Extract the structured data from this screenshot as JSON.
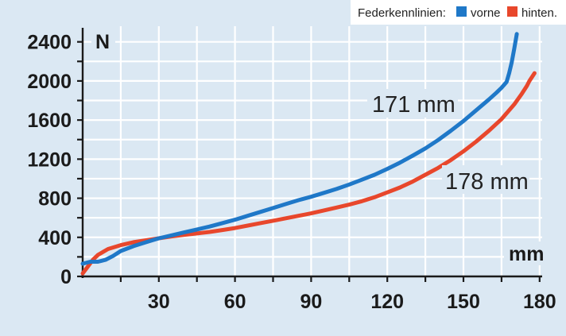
{
  "chart_data": {
    "type": "line",
    "title": "",
    "xlabel": "",
    "ylabel": "",
    "x_unit": "mm",
    "y_unit": "N",
    "xlim": [
      0,
      181
    ],
    "ylim": [
      0,
      2560
    ],
    "x_ticks": [
      30,
      60,
      90,
      120,
      150,
      180
    ],
    "y_ticks": [
      0,
      400,
      800,
      1200,
      1600,
      2000,
      2400
    ],
    "grid": true,
    "legend": {
      "title": "Federkennlinien:",
      "placement": "top-right",
      "entries": [
        {
          "label": "vorne",
          "color": "#1f78c8"
        },
        {
          "label": "hinten.",
          "color": "#e8472c"
        }
      ]
    },
    "annotations": [
      "171 mm",
      "178 mm"
    ],
    "series": [
      {
        "name": "vorne",
        "color": "#1f78c8",
        "x": [
          0,
          3,
          6,
          9,
          12,
          15,
          20,
          25,
          30,
          35,
          40,
          45,
          50,
          55,
          60,
          65,
          70,
          75,
          80,
          85,
          90,
          95,
          100,
          105,
          110,
          115,
          120,
          125,
          130,
          135,
          140,
          145,
          150,
          155,
          160,
          163,
          165,
          167,
          168,
          169,
          170,
          171
        ],
        "y": [
          130,
          150,
          150,
          170,
          210,
          260,
          310,
          350,
          390,
          420,
          450,
          480,
          510,
          545,
          580,
          620,
          660,
          700,
          740,
          780,
          815,
          855,
          895,
          940,
          990,
          1040,
          1100,
          1165,
          1235,
          1310,
          1395,
          1490,
          1590,
          1700,
          1810,
          1880,
          1930,
          1990,
          2080,
          2190,
          2330,
          2480
        ]
      },
      {
        "name": "hinten.",
        "color": "#e8472c",
        "x": [
          0,
          2,
          4,
          6,
          10,
          15,
          20,
          25,
          30,
          35,
          40,
          45,
          50,
          55,
          60,
          65,
          70,
          75,
          80,
          85,
          90,
          95,
          100,
          105,
          110,
          115,
          120,
          125,
          130,
          135,
          140,
          145,
          150,
          155,
          160,
          165,
          170,
          173,
          175,
          176,
          177,
          178
        ],
        "y": [
          30,
          100,
          170,
          220,
          280,
          320,
          350,
          370,
          390,
          410,
          425,
          440,
          455,
          475,
          495,
          520,
          545,
          570,
          595,
          620,
          645,
          675,
          705,
          735,
          770,
          810,
          860,
          910,
          970,
          1040,
          1110,
          1190,
          1280,
          1380,
          1490,
          1610,
          1760,
          1870,
          1950,
          2000,
          2040,
          2080
        ]
      }
    ]
  }
}
